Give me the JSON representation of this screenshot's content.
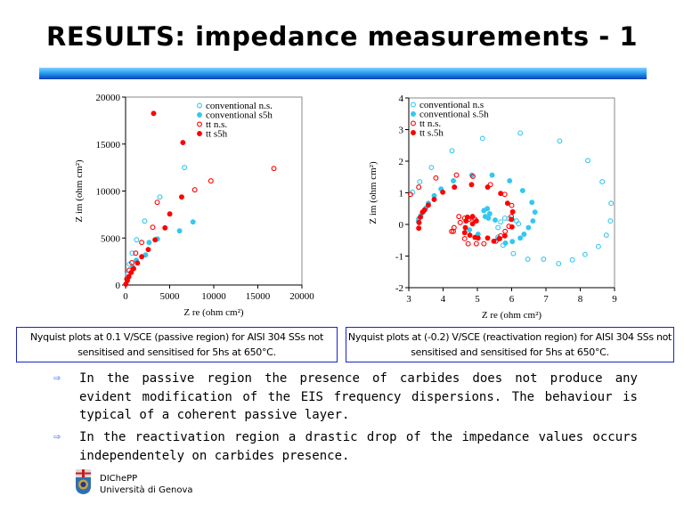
{
  "title": "RESULTS: impedance measurements - 1",
  "captions": {
    "left": "Nyquist plots at 0.1 V/SCE (passive region) for AISI 304 SSs not sensitised and sensitised for 5hs at 650°C.",
    "right": "Nyquist plots at (-0.2) V/SCE (reactivation region) for AISI 304 SSs not sensitised and sensitised for 5hs at 650°C."
  },
  "bullets": [
    "In the passive region the presence of carbides does not produce any evident modification of the EIS frequency dispersions. The behaviour is typical of a coherent passive layer.",
    "In the reactivation region a drastic drop of the impedance values occurs independentely on carbides presence."
  ],
  "footer": {
    "line1": "DIChePP",
    "line2": "Università di Genova"
  },
  "colors": {
    "cyan": "#33c8f0",
    "red": "#ff0000",
    "title_bar": "#2aa0f0",
    "caption_border": "#1a24c8"
  },
  "chart_data": [
    {
      "type": "scatter",
      "title": "",
      "xlabel": "Z re (ohm cm²)",
      "ylabel": "Z im (ohm cm²)",
      "xlim": [
        0,
        20000
      ],
      "ylim": [
        0,
        20000
      ],
      "xticks": [
        0,
        5000,
        10000,
        15000,
        20000
      ],
      "yticks": [
        0,
        5000,
        10000,
        15000,
        20000
      ],
      "legend_position": "top-right",
      "series": [
        {
          "name": "conventional n.s.",
          "color": "#33c8f0",
          "filled": false,
          "points": [
            [
              200,
              1110
            ],
            [
              440,
              2220
            ],
            [
              740,
              3390
            ],
            [
              1250,
              4810
            ],
            [
              2170,
              6800
            ],
            [
              3890,
              9370
            ],
            [
              6670,
              12500
            ]
          ]
        },
        {
          "name": "conventional s5h",
          "color": "#33c8f0",
          "filled": true,
          "points": [
            [
              300,
              790
            ],
            [
              810,
              1960
            ],
            [
              1220,
              2630
            ],
            [
              2270,
              3200
            ],
            [
              2670,
              4530
            ],
            [
              3620,
              4900
            ],
            [
              6120,
              5760
            ],
            [
              7650,
              6710
            ]
          ]
        },
        {
          "name": "tt n.s.",
          "color": "#ff0000",
          "filled": false,
          "points": [
            [
              140,
              630
            ],
            [
              410,
              1580
            ],
            [
              710,
              2370
            ],
            [
              1150,
              3390
            ],
            [
              1830,
              4530
            ],
            [
              3080,
              6140
            ],
            [
              3590,
              8800
            ],
            [
              7850,
              10130
            ],
            [
              9680,
              11080
            ],
            [
              16820,
              12400
            ]
          ]
        },
        {
          "name": "tt s5h",
          "color": "#ff0000",
          "filled": true,
          "points": [
            [
              30,
              90
            ],
            [
              200,
              470
            ],
            [
              370,
              890
            ],
            [
              640,
              1330
            ],
            [
              910,
              1740
            ],
            [
              1350,
              2340
            ],
            [
              1830,
              3010
            ],
            [
              2570,
              3770
            ],
            [
              3350,
              4810
            ],
            [
              4470,
              6080
            ],
            [
              5010,
              7560
            ],
            [
              6360,
              9370
            ],
            [
              6500,
              15160
            ],
            [
              3180,
              18260
            ]
          ]
        }
      ]
    },
    {
      "type": "scatter",
      "title": "",
      "xlabel": "Z re (ohm cm²)",
      "ylabel": "Z im (ohm cm²)",
      "xlim": [
        3,
        9
      ],
      "ylim": [
        -2,
        4
      ],
      "xticks": [
        3,
        4,
        5,
        6,
        7,
        8,
        9
      ],
      "yticks": [
        -2,
        -1,
        0,
        1,
        2,
        3,
        4
      ],
      "legend_position": "top-left",
      "series": [
        {
          "name": "conventional n.s",
          "color": "#33c8f0",
          "filled": false,
          "points": [
            [
              3.11,
              1.02
            ],
            [
              3.32,
              1.35
            ],
            [
              3.66,
              1.8
            ],
            [
              4.26,
              2.33
            ],
            [
              5.15,
              2.72
            ],
            [
              6.25,
              2.89
            ],
            [
              7.4,
              2.64
            ],
            [
              8.22,
              2.02
            ],
            [
              8.64,
              1.35
            ],
            [
              8.9,
              0.67
            ],
            [
              8.88,
              0.11
            ],
            [
              8.76,
              -0.34
            ],
            [
              8.53,
              -0.7
            ],
            [
              8.14,
              -0.95
            ],
            [
              7.77,
              -1.12
            ],
            [
              7.37,
              -1.24
            ],
            [
              6.93,
              -1.1
            ],
            [
              6.47,
              -1.1
            ],
            [
              6.05,
              -0.92
            ],
            [
              5.75,
              -0.66
            ],
            [
              5.6,
              -0.4
            ],
            [
              5.6,
              -0.1
            ],
            [
              5.68,
              0.08
            ],
            [
              5.8,
              0.2
            ],
            [
              5.92,
              0.18
            ],
            [
              6.01,
              0.16
            ],
            [
              6.14,
              0.11
            ],
            [
              6.2,
              0.02
            ]
          ]
        },
        {
          "name": "conventional s.5h",
          "color": "#33c8f0",
          "filled": true,
          "points": [
            [
              3.28,
              0.1
            ],
            [
              3.29,
              0.18
            ],
            [
              3.35,
              0.28
            ],
            [
              3.42,
              0.4
            ],
            [
              3.5,
              0.52
            ],
            [
              3.57,
              0.67
            ],
            [
              3.74,
              0.91
            ],
            [
              3.94,
              1.12
            ],
            [
              4.3,
              1.38
            ],
            [
              4.84,
              1.56
            ],
            [
              5.43,
              1.56
            ],
            [
              5.94,
              1.38
            ],
            [
              6.32,
              1.07
            ],
            [
              6.59,
              0.7
            ],
            [
              6.68,
              0.39
            ],
            [
              6.62,
              0.11
            ],
            [
              6.49,
              -0.1
            ],
            [
              6.36,
              -0.31
            ],
            [
              6.25,
              -0.43
            ],
            [
              6.02,
              -0.54
            ],
            [
              5.82,
              -0.59
            ],
            [
              5.61,
              -0.45
            ],
            [
              5.52,
              0.14
            ],
            [
              5.36,
              0.34
            ],
            [
              5.29,
              0.5
            ],
            [
              5.19,
              0.44
            ],
            [
              5.23,
              0.25
            ],
            [
              5.32,
              0.2
            ],
            [
              4.83,
              0.2
            ],
            [
              4.77,
              -0.17
            ],
            [
              5.02,
              -0.31
            ]
          ]
        },
        {
          "name": "tt n.s.",
          "color": "#ff0000",
          "filled": false,
          "points": [
            [
              3.05,
              0.95
            ],
            [
              3.29,
              1.18
            ],
            [
              3.79,
              1.47
            ],
            [
              4.39,
              1.56
            ],
            [
              4.87,
              1.52
            ],
            [
              5.38,
              1.26
            ],
            [
              5.8,
              0.95
            ],
            [
              6.0,
              0.6
            ],
            [
              5.99,
              0.25
            ],
            [
              5.92,
              -0.06
            ],
            [
              5.81,
              -0.22
            ],
            [
              5.68,
              -0.36
            ],
            [
              5.54,
              -0.53
            ],
            [
              5.19,
              -0.61
            ],
            [
              4.97,
              -0.61
            ],
            [
              4.73,
              -0.61
            ],
            [
              4.63,
              -0.45
            ],
            [
              4.5,
              0.06
            ],
            [
              4.46,
              0.25
            ],
            [
              4.63,
              0.2
            ],
            [
              4.32,
              -0.1
            ],
            [
              4.3,
              -0.22
            ],
            [
              4.25,
              -0.22
            ],
            [
              4.93,
              0.16
            ],
            [
              4.75,
              0.16
            ]
          ]
        },
        {
          "name": "tt s.5h",
          "color": "#ff0000",
          "filled": true,
          "points": [
            [
              3.29,
              -0.12
            ],
            [
              3.3,
              0.06
            ],
            [
              3.34,
              0.23
            ],
            [
              3.4,
              0.39
            ],
            [
              3.46,
              0.46
            ],
            [
              3.57,
              0.61
            ],
            [
              3.74,
              0.79
            ],
            [
              3.99,
              1.02
            ],
            [
              4.33,
              1.18
            ],
            [
              4.83,
              1.26
            ],
            [
              5.3,
              1.18
            ],
            [
              5.68,
              0.98
            ],
            [
              5.88,
              0.67
            ],
            [
              6.03,
              0.4
            ],
            [
              5.99,
              0.16
            ],
            [
              6.01,
              -0.08
            ],
            [
              5.8,
              -0.36
            ],
            [
              5.65,
              -0.45
            ],
            [
              5.48,
              -0.53
            ],
            [
              5.3,
              -0.43
            ],
            [
              5.02,
              -0.43
            ],
            [
              4.93,
              -0.41
            ],
            [
              4.78,
              -0.34
            ],
            [
              4.63,
              -0.26
            ],
            [
              4.65,
              -0.1
            ],
            [
              4.67,
              0.11
            ],
            [
              4.71,
              0.23
            ],
            [
              4.86,
              0.25
            ],
            [
              4.97,
              0.11
            ],
            [
              4.86,
              0.02
            ]
          ]
        }
      ]
    }
  ]
}
